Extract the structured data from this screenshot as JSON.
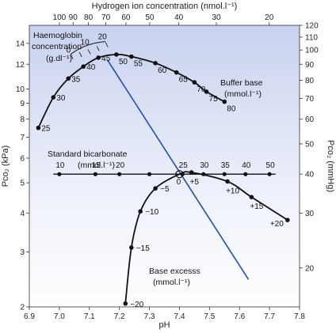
{
  "chart_data": {
    "type": "line",
    "x_axis": {
      "label": "pH",
      "range": [
        6.9,
        7.8
      ],
      "ticks": [
        6.9,
        7.0,
        7.1,
        7.2,
        7.3,
        7.4,
        7.5,
        7.6,
        7.7,
        7.8
      ],
      "tick_labels": [
        "6.9",
        "7.0",
        "7.1",
        "7.2",
        "7.3",
        "7.4",
        "7.5",
        "7.6",
        "7.7",
        "7.8"
      ]
    },
    "top_axis": {
      "label": "Hydrogen ion concentration (nmol.l⁻¹)",
      "ticks": [
        100,
        90,
        80,
        70,
        60,
        50,
        40,
        30,
        20
      ],
      "tick_labels": [
        "100",
        "90",
        "80",
        "70",
        "60",
        "50",
        "40",
        "30",
        "20"
      ]
    },
    "y_axis_left": {
      "label": "Pco₂ (kPa)",
      "scale": "log",
      "range": [
        2,
        16
      ],
      "ticks": [
        2,
        3,
        4,
        5,
        6,
        7,
        8,
        9,
        10,
        12,
        14
      ],
      "tick_labels": [
        "2",
        "3",
        "4",
        "5",
        "6",
        "7",
        "8",
        "9",
        "10",
        "12",
        "14"
      ]
    },
    "y_axis_right": {
      "label": "Pco₂ (mmHg)",
      "scale": "log",
      "ticks": [
        20,
        30,
        40,
        50,
        60,
        70,
        80,
        90,
        100,
        110,
        120
      ],
      "tick_labels": [
        "20",
        "30",
        "40",
        "50",
        "60",
        "70",
        "80",
        "90",
        "100",
        "110",
        "120"
      ]
    },
    "background": "#c9d2ef",
    "grid": false,
    "series": [
      {
        "name": "Buffer base",
        "unit_label": "(mmol.l⁻¹)",
        "color": "#111111",
        "points": [
          {
            "x": 6.93,
            "y": 7.5,
            "label": "25"
          },
          {
            "x": 6.98,
            "y": 9.4,
            "label": "30"
          },
          {
            "x": 7.03,
            "y": 10.8,
            "label": "35"
          },
          {
            "x": 7.08,
            "y": 11.8,
            "label": "40"
          },
          {
            "x": 7.13,
            "y": 12.6,
            "label": "45"
          },
          {
            "x": 7.19,
            "y": 12.9,
            "label": "50"
          },
          {
            "x": 7.24,
            "y": 12.7,
            "label": "55"
          },
          {
            "x": 7.32,
            "y": 12.1,
            "label": "60"
          },
          {
            "x": 7.39,
            "y": 11.3,
            "label": "65"
          },
          {
            "x": 7.45,
            "y": 10.5,
            "label": "70"
          },
          {
            "x": 7.49,
            "y": 9.8,
            "label": "75"
          },
          {
            "x": 7.55,
            "y": 9.1,
            "label": "80"
          }
        ]
      },
      {
        "name": "Standard bicarbonate",
        "unit_label": "(mmol.l⁻¹)",
        "color": "#111111",
        "points": [
          {
            "x": 7.0,
            "y": 5.33,
            "label": "10"
          },
          {
            "x": 7.12,
            "y": 5.33,
            "label": "15"
          },
          {
            "x": 7.2,
            "y": 5.33,
            "label": "20"
          },
          {
            "x": 7.3,
            "y": 5.33,
            "label": ""
          },
          {
            "x": 7.41,
            "y": 5.33,
            "label": "25"
          },
          {
            "x": 7.48,
            "y": 5.33,
            "label": "30"
          },
          {
            "x": 7.55,
            "y": 5.33,
            "label": "35"
          },
          {
            "x": 7.62,
            "y": 5.33,
            "label": "40"
          },
          {
            "x": 7.7,
            "y": 5.33,
            "label": "50"
          }
        ]
      },
      {
        "name": "Base excesss",
        "unit_label": "(mmol.l⁻¹)",
        "color": "#111111",
        "points": [
          {
            "x": 7.22,
            "y": 2.05,
            "label": "−20"
          },
          {
            "x": 7.24,
            "y": 3.1,
            "label": "−15"
          },
          {
            "x": 7.27,
            "y": 4.05,
            "label": "−10"
          },
          {
            "x": 7.32,
            "y": 4.8,
            "label": "−5"
          },
          {
            "x": 7.4,
            "y": 5.33,
            "label": "0"
          },
          {
            "x": 7.44,
            "y": 5.4,
            "label": "+5"
          },
          {
            "x": 7.56,
            "y": 5.05,
            "label": "+10"
          },
          {
            "x": 7.64,
            "y": 4.5,
            "label": "+15"
          },
          {
            "x": 7.76,
            "y": 3.8,
            "label": "+20"
          }
        ]
      },
      {
        "name": "Haemoglobin concentration",
        "unit_label": "(g.dl⁻¹)",
        "color": "#1f4fb4",
        "points": [
          {
            "x": 7.16,
            "y": 12.4
          },
          {
            "x": 7.63,
            "y": 2.45
          }
        ],
        "scale_labels": [
          "0",
          "10",
          "20"
        ]
      }
    ],
    "center_point": {
      "x": 7.4,
      "y": 5.33
    }
  }
}
